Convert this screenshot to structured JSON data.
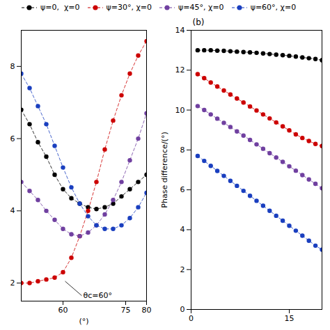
{
  "chart_data": [
    {
      "type": "line",
      "xlabel": "(°)",
      "xlim": [
        50,
        80
      ],
      "xticks": [
        60,
        75,
        80
      ],
      "ylim": [
        1.5,
        9.0
      ],
      "yticks": [
        2,
        4,
        6,
        8
      ],
      "legend": "upper left",
      "marker": "o",
      "line_style": "dashed",
      "annotations": [
        {
          "text": "θc=60°",
          "xy": [
            60.5,
            2.05
          ],
          "xytext": [
            64.5,
            1.65
          ]
        }
      ],
      "x": [
        50,
        52,
        54,
        56,
        58,
        60,
        62,
        64,
        66,
        68,
        70,
        72,
        74,
        76,
        78,
        80
      ],
      "series": [
        {
          "name": "ψ=0,  χ=0",
          "color": "black",
          "values": [
            6.8,
            6.4,
            5.9,
            5.5,
            5.0,
            4.6,
            4.35,
            4.2,
            4.1,
            4.05,
            4.1,
            4.2,
            4.4,
            4.6,
            4.8,
            5.0
          ]
        },
        {
          "name": "ψ=30°, χ=0",
          "color": "#cc0000",
          "values": [
            2.0,
            2.0,
            2.05,
            2.1,
            2.15,
            2.3,
            2.7,
            3.3,
            4.0,
            4.8,
            5.7,
            6.5,
            7.2,
            7.8,
            8.3,
            8.7
          ]
        },
        {
          "name": "ψ=45°, χ=0",
          "color": "#7040A0",
          "values": [
            4.8,
            4.55,
            4.3,
            4.0,
            3.75,
            3.5,
            3.35,
            3.3,
            3.4,
            3.6,
            3.9,
            4.3,
            4.8,
            5.4,
            6.0,
            6.7
          ]
        },
        {
          "name": "ψ=60°, χ=0",
          "color": "#1a3fbf",
          "values": [
            7.8,
            7.4,
            6.9,
            6.4,
            5.8,
            5.2,
            4.65,
            4.2,
            3.85,
            3.6,
            3.5,
            3.5,
            3.6,
            3.8,
            4.1,
            4.5
          ]
        }
      ]
    },
    {
      "type": "line",
      "title": "(b)",
      "ylabel": "Phase difference/(°)",
      "xlim": [
        0,
        20
      ],
      "xticks": [
        0,
        15
      ],
      "ylim": [
        0,
        14
      ],
      "yticks": [
        0,
        2,
        4,
        6,
        8,
        10,
        12,
        14
      ],
      "marker": "o",
      "line_style": "dashed",
      "x": [
        1,
        2,
        3,
        4,
        5,
        6,
        7,
        8,
        9,
        10,
        11,
        12,
        13,
        14,
        15,
        16,
        17,
        18,
        19,
        20
      ],
      "series": [
        {
          "name": "ψ=0,  χ=0",
          "color": "black",
          "values": [
            13.0,
            13.0,
            13.0,
            12.98,
            12.97,
            12.95,
            12.93,
            12.91,
            12.89,
            12.87,
            12.84,
            12.81,
            12.78,
            12.75,
            12.72,
            12.68,
            12.64,
            12.6,
            12.56,
            12.5
          ]
        },
        {
          "name": "ψ=30°, χ=0",
          "color": "#cc0000",
          "values": [
            11.8,
            11.6,
            11.38,
            11.18,
            10.98,
            10.78,
            10.58,
            10.38,
            10.18,
            9.98,
            9.78,
            9.58,
            9.38,
            9.18,
            8.98,
            8.78,
            8.6,
            8.45,
            8.3,
            8.2
          ]
        },
        {
          "name": "ψ=45°, χ=0",
          "color": "#7040A0",
          "values": [
            10.2,
            10.0,
            9.78,
            9.57,
            9.36,
            9.15,
            8.93,
            8.72,
            8.5,
            8.28,
            8.06,
            7.84,
            7.62,
            7.4,
            7.18,
            6.96,
            6.74,
            6.52,
            6.3,
            6.08
          ]
        },
        {
          "name": "ψ=60°, χ=0",
          "color": "#1a3fbf",
          "values": [
            7.7,
            7.45,
            7.2,
            6.95,
            6.7,
            6.45,
            6.2,
            5.95,
            5.7,
            5.45,
            5.2,
            4.95,
            4.7,
            4.45,
            4.2,
            3.95,
            3.7,
            3.45,
            3.2,
            3.0
          ]
        }
      ]
    }
  ]
}
